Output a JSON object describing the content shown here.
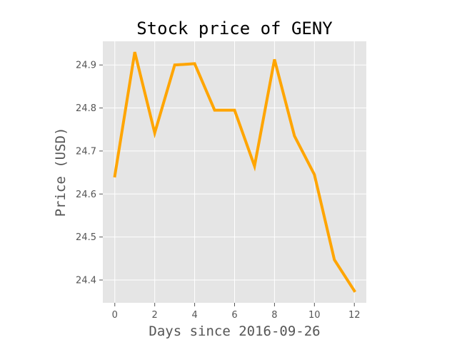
{
  "chart_data": {
    "type": "line",
    "title": "Stock price of GENY",
    "xlabel": "Days since 2016-09-26",
    "ylabel": "Price (USD)",
    "x": [
      0,
      1,
      2,
      3,
      4,
      5,
      6,
      7,
      8,
      9,
      10,
      11,
      12
    ],
    "series": [
      {
        "values": [
          24.642,
          24.93,
          24.742,
          24.9,
          24.903,
          24.795,
          24.795,
          24.665,
          24.913,
          24.735,
          24.645,
          24.447,
          24.375
        ],
        "color": "#ffa500"
      }
    ],
    "xlim": [
      -0.6,
      12.6
    ],
    "ylim": [
      24.347,
      24.955
    ],
    "xticks": [
      0,
      2,
      4,
      6,
      8,
      10,
      12
    ],
    "yticks": [
      24.4,
      24.5,
      24.6,
      24.7,
      24.8,
      24.9
    ],
    "xtick_labels": [
      "0",
      "2",
      "4",
      "6",
      "8",
      "10",
      "12"
    ],
    "ytick_labels": [
      "24.4",
      "24.5",
      "24.6",
      "24.7",
      "24.8",
      "24.9"
    ],
    "grid": true,
    "legend": false,
    "style": {
      "plot_background": "#e5e5e5",
      "grid_color": "#ffffff",
      "tick_color": "#555555"
    }
  }
}
